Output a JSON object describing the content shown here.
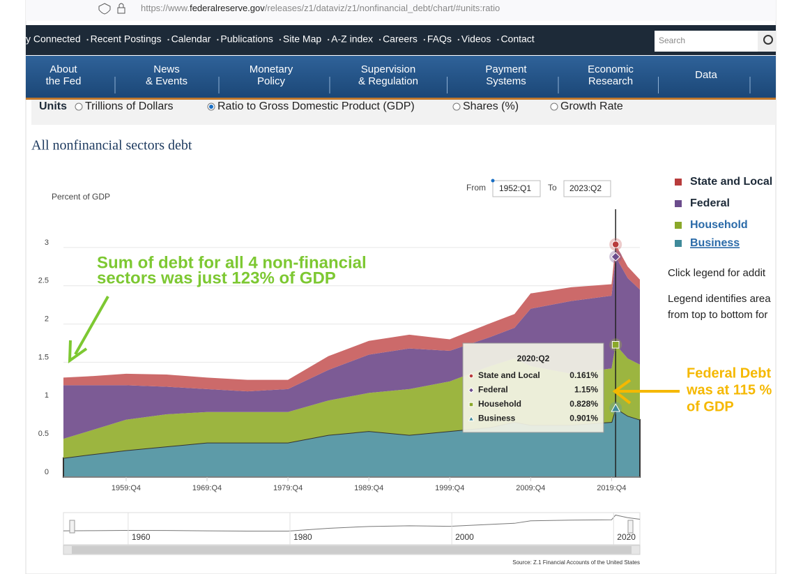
{
  "browser": {
    "url": [
      "https://www.",
      "federalreserve.gov",
      "/releases/z1/dataviz/z1/nonfinancial_debt/chart/#units:ratio"
    ]
  },
  "topnav": {
    "links": [
      "y Connected",
      "Recent Postings",
      "Calendar",
      "Publications",
      "Site Map",
      "A-Z index",
      "Careers",
      "FAQs",
      "Videos",
      "Contact"
    ],
    "search": "Search"
  },
  "menu": [
    [
      "About",
      "the Fed"
    ],
    [
      "News",
      "& Events"
    ],
    [
      "Monetary",
      "Policy"
    ],
    [
      "Supervision",
      "& Regulation"
    ],
    [
      "Payment",
      "Systems"
    ],
    [
      "Economic",
      "Research"
    ],
    [
      "Data"
    ]
  ],
  "units": {
    "label": "Units",
    "options": [
      "Trillions of Dollars",
      "Ratio to Gross Domestic Product (GDP)",
      "Shares (%)",
      "Growth Rate"
    ],
    "selected": 1
  },
  "legend_notes": [
    "Click legend for addit",
    "Legend identifies area",
    "from top to bottom for"
  ],
  "chart_data": {
    "type": "stacked-area",
    "title": "All nonfinancial sectors debt",
    "y_label": "Percent of GDP",
    "from_label": "From",
    "to_label": "To",
    "x": [
      "1952:Q1",
      "1955:Q4",
      "1959:Q4",
      "1964:Q4",
      "1969:Q4",
      "1974:Q4",
      "1979:Q4",
      "1984:Q4",
      "1989:Q4",
      "1994:Q4",
      "1999:Q4",
      "2004:Q4",
      "2007:Q4",
      "2009:Q4",
      "2014:Q4",
      "2019:Q4",
      "2020:Q2",
      "2021:Q4",
      "2023:Q2"
    ],
    "series": [
      {
        "name": "Business",
        "color": "#5d9ba8",
        "legend_color": "#3f8a9a",
        "values": [
          0.25,
          0.3,
          0.35,
          0.4,
          0.45,
          0.45,
          0.45,
          0.55,
          0.6,
          0.55,
          0.6,
          0.65,
          0.72,
          0.68,
          0.68,
          0.72,
          0.901,
          0.8,
          0.75
        ]
      },
      {
        "name": "Household",
        "color": "#9cb540",
        "legend_color": "#8aa82a",
        "values": [
          0.25,
          0.32,
          0.4,
          0.42,
          0.4,
          0.4,
          0.4,
          0.45,
          0.5,
          0.6,
          0.65,
          0.8,
          0.83,
          0.77,
          0.67,
          0.7,
          0.828,
          0.75,
          0.72
        ]
      },
      {
        "name": "Federal",
        "color": "#7c5b95",
        "legend_color": "#6b4c8c",
        "values": [
          0.7,
          0.58,
          0.45,
          0.36,
          0.3,
          0.27,
          0.3,
          0.4,
          0.5,
          0.53,
          0.4,
          0.38,
          0.4,
          0.75,
          0.95,
          0.95,
          1.15,
          1.05,
          0.98
        ]
      },
      {
        "name": "State and Local",
        "color": "#cc6a6a",
        "legend_color": "#b83c3c",
        "values": [
          0.1,
          0.12,
          0.15,
          0.16,
          0.15,
          0.15,
          0.12,
          0.18,
          0.18,
          0.18,
          0.15,
          0.18,
          0.18,
          0.2,
          0.18,
          0.15,
          0.161,
          0.15,
          0.13
        ]
      }
    ],
    "xlim": [
      "1952:Q1",
      "2023:Q2"
    ],
    "xticks": [
      "1959:Q4",
      "1969:Q4",
      "1979:Q4",
      "1989:Q4",
      "1999:Q4",
      "2009:Q4",
      "2019:Q4"
    ],
    "ylim": [
      0,
      3.5
    ],
    "yticks": [
      0,
      0.5,
      1,
      1.5,
      2,
      2.5,
      3
    ],
    "grid": true,
    "tooltip": {
      "index": 16,
      "title": "2020:Q2",
      "labels": [
        "0.901%",
        "0.828%",
        "1.15%",
        "0.161%"
      ]
    },
    "navigator_ticks": [
      1960,
      1980,
      2000,
      2020
    ],
    "source": "Source: Z.1 Financial Accounts of the United States",
    "annotations": [
      {
        "lines": [
          "Sum of debt for all 4 non-financial",
          "sectors was just 123% of GDP"
        ],
        "color": "#7dc832"
      },
      {
        "lines": [
          "Federal Debt",
          "was at 115 %",
          "of GDP"
        ],
        "color": "#f5b800"
      }
    ]
  }
}
